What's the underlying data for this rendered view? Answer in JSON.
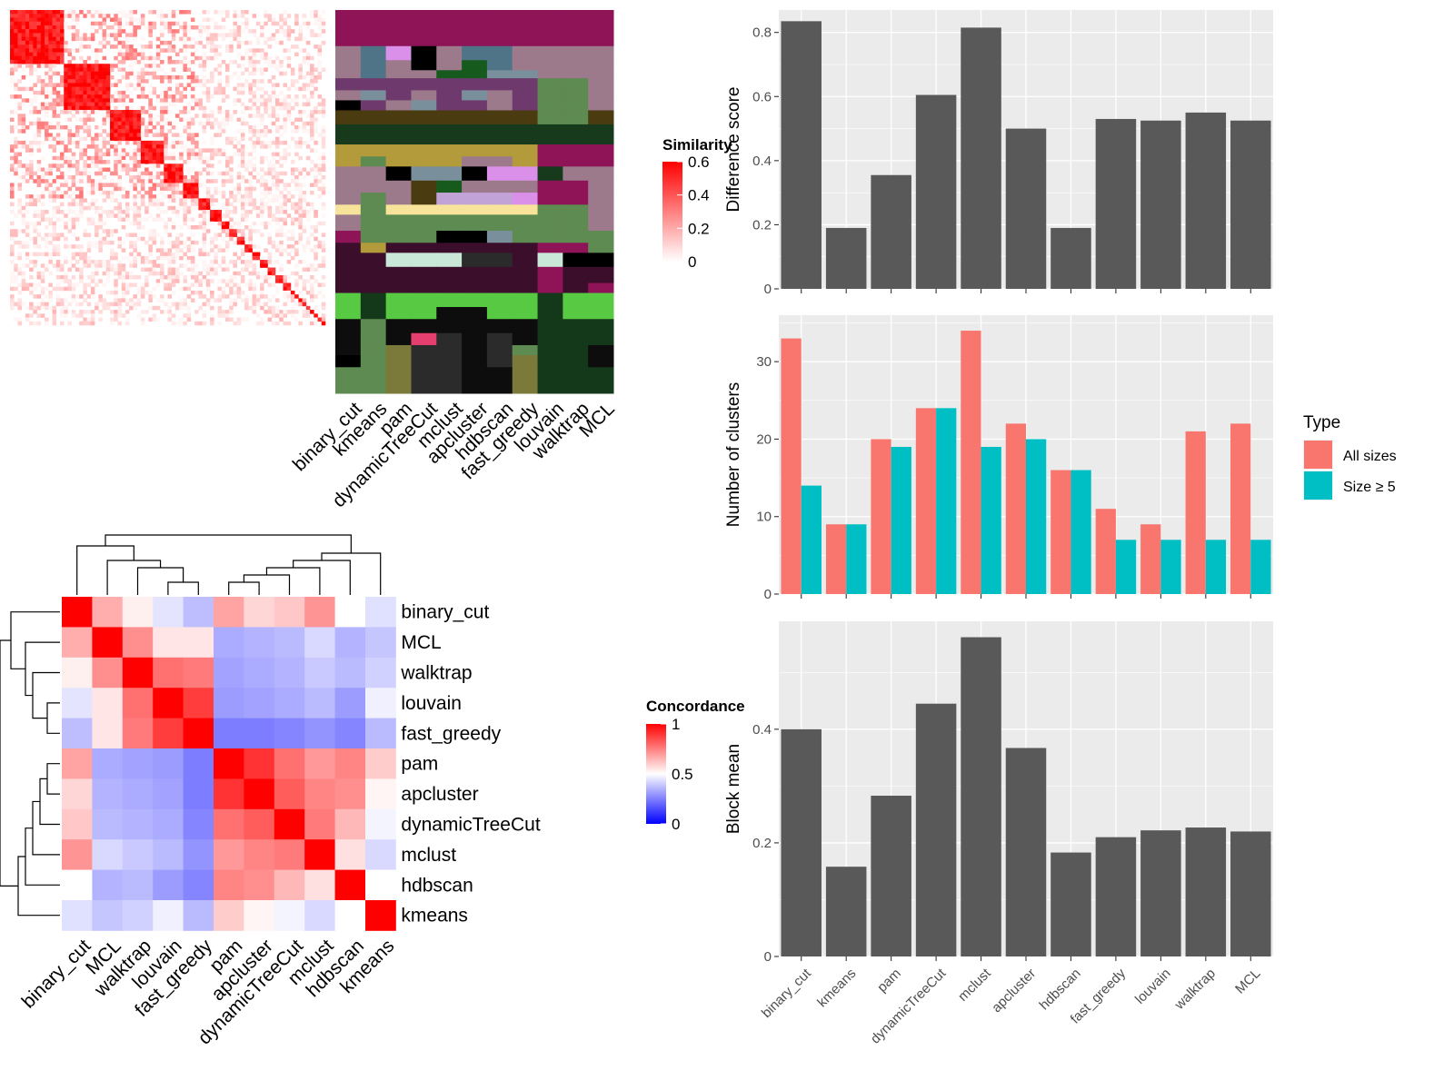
{
  "colors": {
    "panel_bg": "#EBEBEB",
    "grid": "#FFFFFF",
    "bar_gray": "#595959",
    "all_sizes": "#F8766D",
    "size_ge5": "#00BFC4",
    "heat_high": "#FF0000",
    "heat_low": "#0000FF",
    "heat_mid": "#FFFFFF"
  },
  "chart_data": [
    {
      "type": "heatmap",
      "id": "similarity-matrix",
      "legend_title": "Similarity",
      "legend_ticks": [
        "0.6",
        "0.4",
        "0.2",
        "0"
      ],
      "legend_range": [
        0,
        0.6
      ],
      "block_sizes": [
        14,
        12,
        8,
        6,
        5,
        4,
        3,
        3,
        2,
        2,
        2,
        2,
        2,
        2,
        2,
        2,
        2,
        1,
        1,
        1,
        1,
        1,
        1,
        1,
        1,
        1
      ],
      "in_block_similarity": 0.55,
      "background_similarity": 0.06
    },
    {
      "type": "heatmap",
      "id": "cluster-assignments",
      "methods": [
        "binary_cut",
        "kmeans",
        "pam",
        "dynamicTreeCut",
        "mclust",
        "apcluster",
        "hdbscan",
        "fast_greedy",
        "louvain",
        "walktrap",
        "MCL"
      ],
      "palette": [
        "#8E1357",
        "#9C7A8C",
        "#4F7487",
        "#DA90E8",
        "#000000",
        "#165A1E",
        "#6E3A6D",
        "#7A8F9C",
        "#5E8B52",
        "#4A3B10",
        "#173A1C",
        "#B39A3A",
        "#C2A3D8",
        "#F7E39A",
        "#2B2B2B",
        "#58C943",
        "#14391A",
        "#C9E8D8",
        "#E43F6F",
        "#BFA040",
        "#0D0D0D",
        "#3B0E2B",
        "#7C7A3A",
        "#B8B8FF"
      ]
    },
    {
      "type": "bar",
      "id": "difference-score",
      "categories": [
        "binary_cut",
        "kmeans",
        "pam",
        "dynamicTreeCut",
        "mclust",
        "apcluster",
        "hdbscan",
        "fast_greedy",
        "louvain",
        "walktrap",
        "MCL"
      ],
      "values": [
        0.835,
        0.19,
        0.355,
        0.605,
        0.815,
        0.5,
        0.19,
        0.53,
        0.525,
        0.55,
        0.525
      ],
      "ylabel": "Difference score",
      "ylim": [
        0,
        0.87
      ],
      "yticks": [
        0.0,
        0.2,
        0.4,
        0.6,
        0.8
      ],
      "grid": true
    },
    {
      "type": "bar",
      "id": "number-of-clusters",
      "categories": [
        "binary_cut",
        "kmeans",
        "pam",
        "dynamicTreeCut",
        "mclust",
        "apcluster",
        "hdbscan",
        "fast_greedy",
        "louvain",
        "walktrap",
        "MCL"
      ],
      "series": [
        {
          "name": "All sizes",
          "values": [
            33,
            9,
            20,
            24,
            34,
            22,
            16,
            11,
            9,
            21,
            22
          ]
        },
        {
          "name": "Size ≥ 5",
          "values": [
            14,
            9,
            19,
            24,
            19,
            20,
            16,
            7,
            7,
            7,
            7
          ]
        }
      ],
      "ylabel": "Number of clusters",
      "ylim": [
        0,
        36
      ],
      "yticks": [
        0,
        10,
        20,
        30
      ],
      "legend_title": "Type",
      "legend_position": "right",
      "grid": true
    },
    {
      "type": "bar",
      "id": "block-mean",
      "categories": [
        "binary_cut",
        "kmeans",
        "pam",
        "dynamicTreeCut",
        "mclust",
        "apcluster",
        "hdbscan",
        "fast_greedy",
        "louvain",
        "walktrap",
        "MCL"
      ],
      "values": [
        0.4,
        0.158,
        0.283,
        0.445,
        0.562,
        0.367,
        0.183,
        0.21,
        0.222,
        0.227,
        0.22
      ],
      "ylabel": "Block mean",
      "ylim": [
        0,
        0.59
      ],
      "yticks": [
        0.0,
        0.2,
        0.4
      ],
      "grid": true
    },
    {
      "type": "heatmap",
      "id": "concordance",
      "order": [
        "binary_cut",
        "MCL",
        "walktrap",
        "louvain",
        "fast_greedy",
        "pam",
        "apcluster",
        "dynamicTreeCut",
        "mclust",
        "hdbscan",
        "kmeans"
      ],
      "values": [
        [
          1.0,
          0.66,
          0.53,
          0.43,
          0.33,
          0.68,
          0.58,
          0.61,
          0.71,
          0.5,
          0.42
        ],
        [
          0.66,
          1.0,
          0.72,
          0.55,
          0.55,
          0.28,
          0.3,
          0.32,
          0.4,
          0.3,
          0.35
        ],
        [
          0.53,
          0.72,
          1.0,
          0.78,
          0.76,
          0.26,
          0.28,
          0.3,
          0.36,
          0.32,
          0.38
        ],
        [
          0.43,
          0.55,
          0.78,
          1.0,
          0.88,
          0.24,
          0.26,
          0.28,
          0.32,
          0.24,
          0.46
        ],
        [
          0.33,
          0.55,
          0.76,
          0.88,
          1.0,
          0.16,
          0.16,
          0.18,
          0.22,
          0.18,
          0.32
        ],
        [
          0.68,
          0.28,
          0.26,
          0.24,
          0.16,
          1.0,
          0.9,
          0.78,
          0.7,
          0.74,
          0.6
        ],
        [
          0.58,
          0.3,
          0.28,
          0.26,
          0.16,
          0.9,
          1.0,
          0.82,
          0.74,
          0.72,
          0.52
        ],
        [
          0.61,
          0.32,
          0.3,
          0.28,
          0.18,
          0.78,
          0.82,
          1.0,
          0.76,
          0.64,
          0.47
        ],
        [
          0.71,
          0.4,
          0.36,
          0.32,
          0.22,
          0.7,
          0.74,
          0.76,
          1.0,
          0.56,
          0.4
        ],
        [
          0.5,
          0.3,
          0.32,
          0.24,
          0.18,
          0.74,
          0.72,
          0.64,
          0.56,
          1.0,
          0.5
        ],
        [
          0.42,
          0.35,
          0.38,
          0.46,
          0.32,
          0.6,
          0.52,
          0.47,
          0.4,
          0.5,
          1.0
        ]
      ],
      "legend_title": "Concordance",
      "legend_ticks": [
        "1",
        "0.5",
        "0"
      ],
      "legend_range": [
        0,
        1
      ]
    }
  ]
}
